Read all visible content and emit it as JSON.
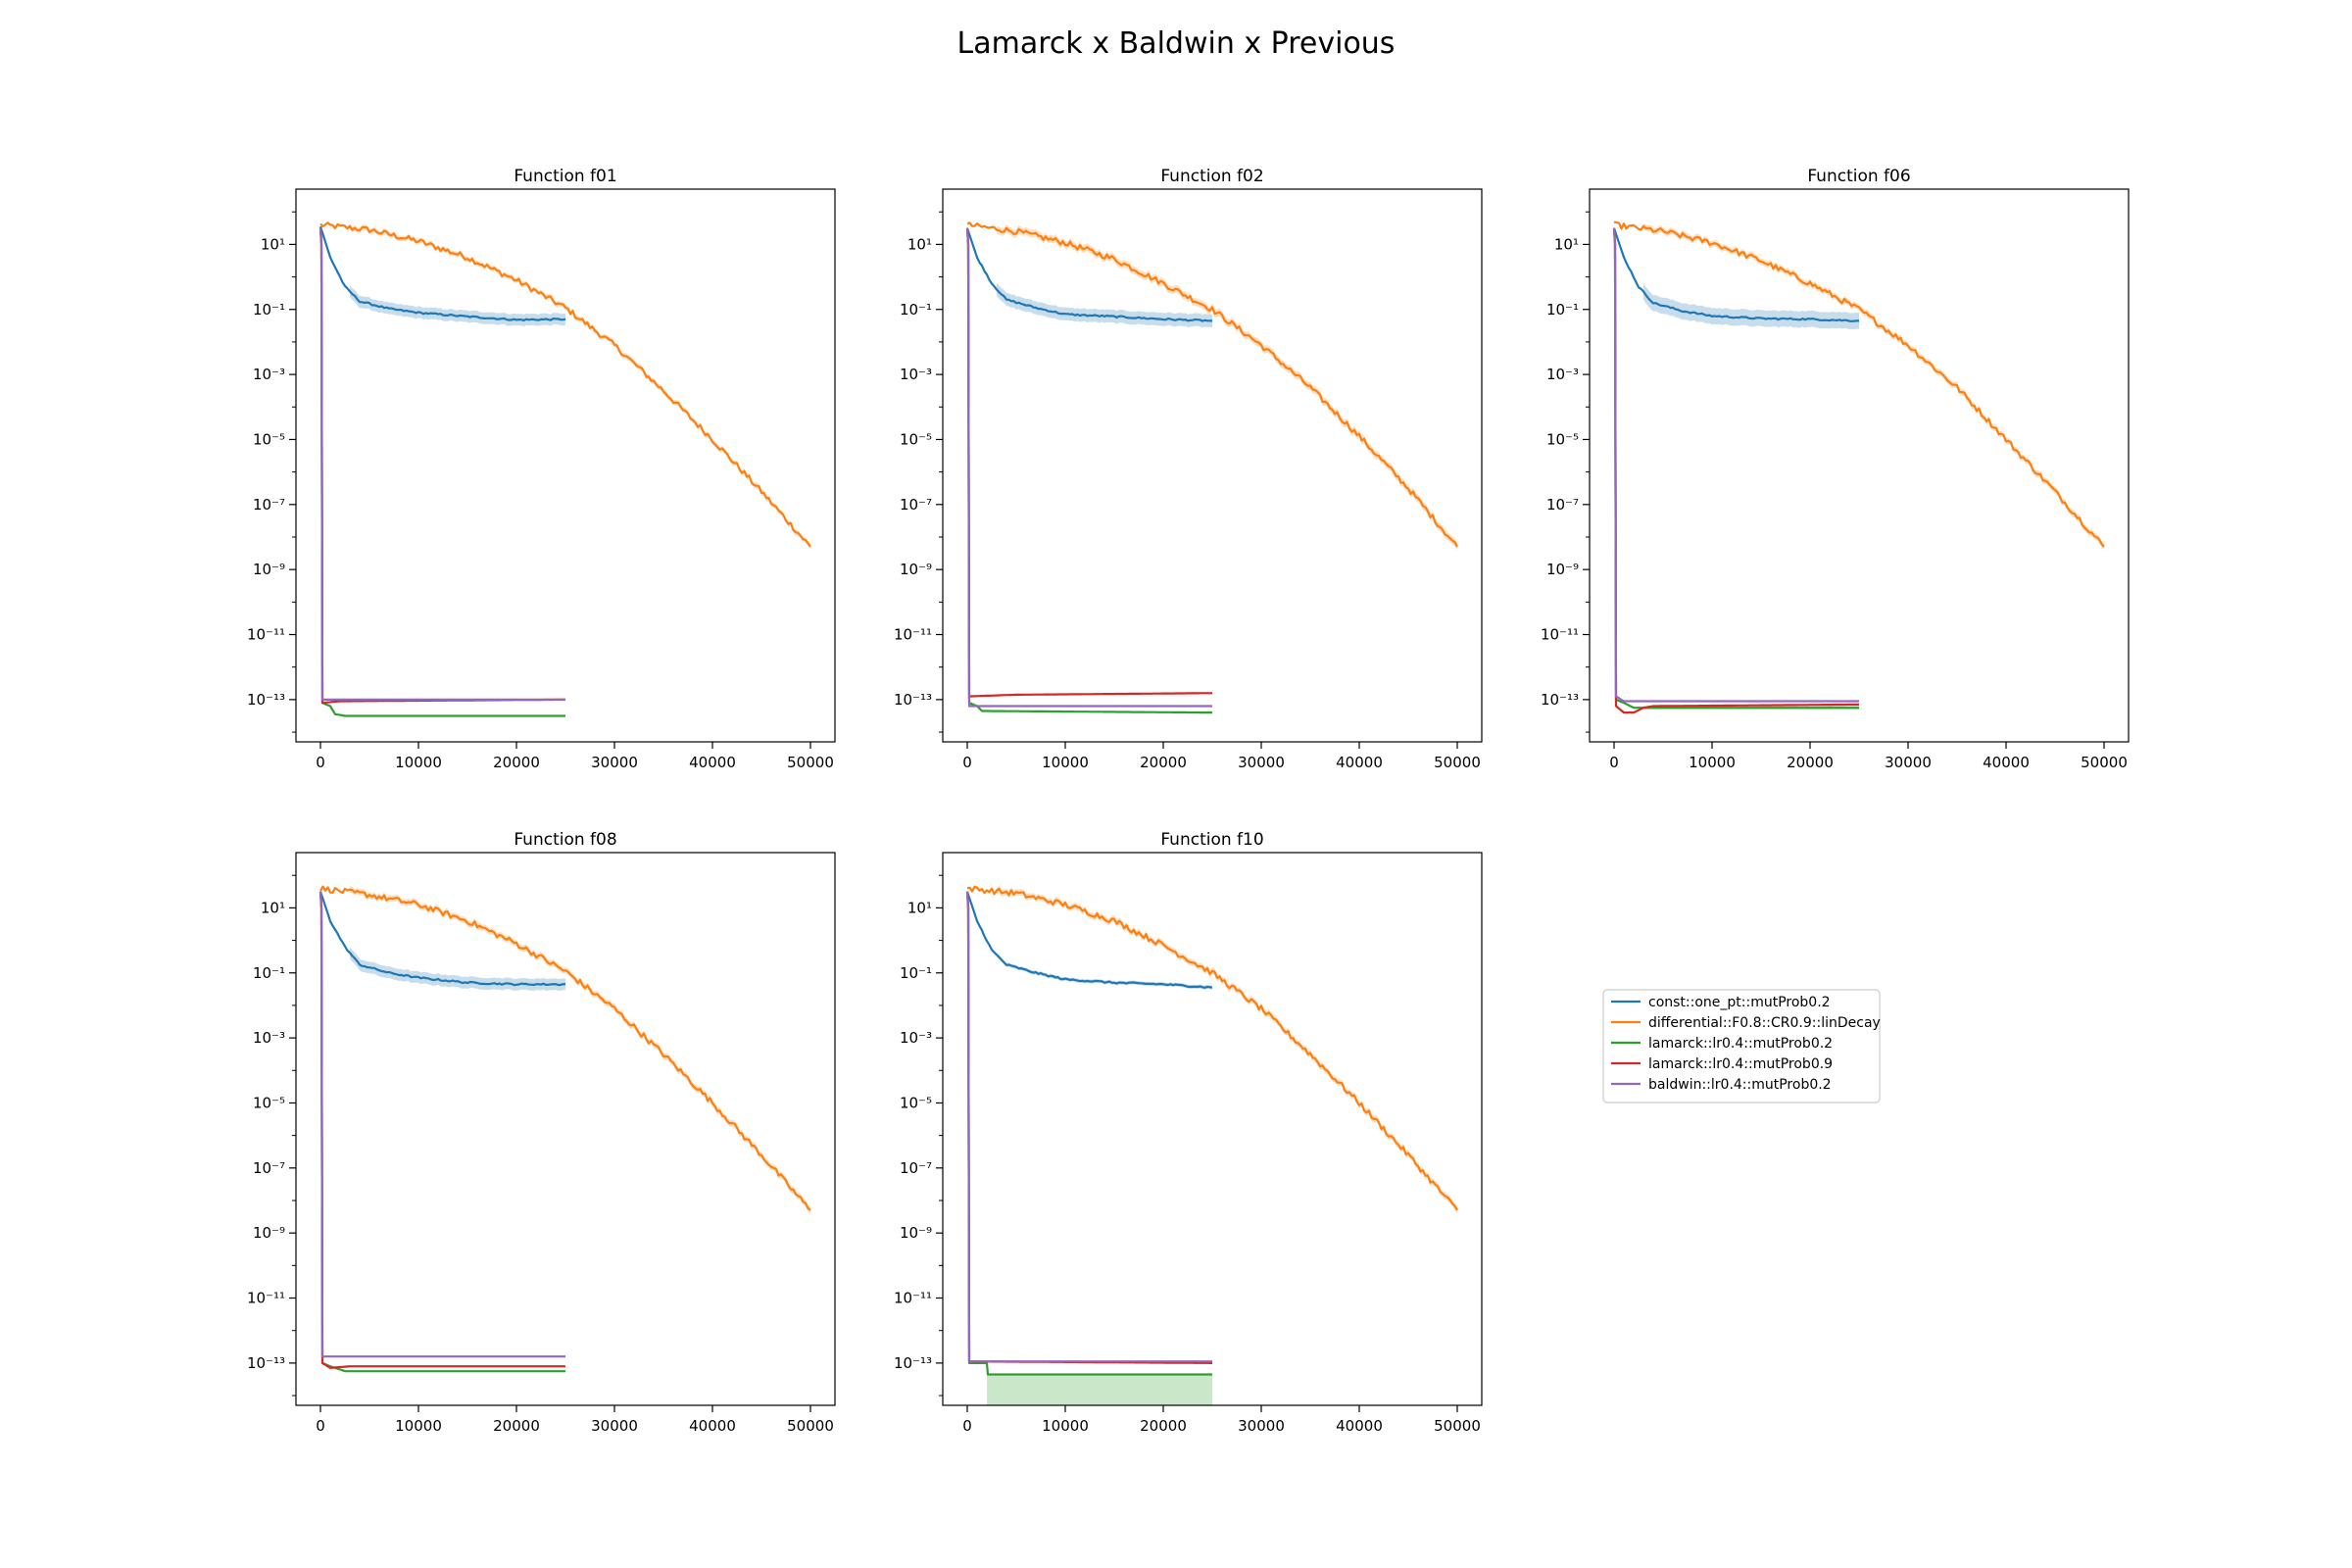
{
  "figure": {
    "title": "Lamarck x Baldwin x Previous"
  },
  "legend": {
    "placement": "right-middle",
    "items": [
      {
        "label": "const::one_pt::mutProb0.2",
        "color": "#1f77b4"
      },
      {
        "label": "differential::F0.8::CR0.9::linDecay",
        "color": "#ff7f0e"
      },
      {
        "label": "lamarck::lr0.4::mutProb0.2",
        "color": "#2ca02c"
      },
      {
        "label": "lamarck::lr0.4::mutProb0.9",
        "color": "#d62728"
      },
      {
        "label": "baldwin::lr0.4::mutProb0.2",
        "color": "#9467bd"
      }
    ]
  },
  "chart_data": [
    {
      "type": "line",
      "title": "Function f01",
      "y_scale": "log",
      "grid": false,
      "xlim": [
        -2500,
        52500
      ],
      "ylim_exp": [
        -14.3,
        2.7
      ],
      "x_ticks": [
        0,
        10000,
        20000,
        30000,
        40000,
        50000
      ],
      "y_tick_exps": [
        1,
        -1,
        -3,
        -5,
        -7,
        -9,
        -11,
        -13
      ],
      "series": [
        {
          "name": "const::one_pt::mutProb0.2",
          "color": "#1f77b4",
          "band": 0.18,
          "points": [
            [
              0,
              1.55
            ],
            [
              1000,
              0.6
            ],
            [
              2500,
              -0.3
            ],
            [
              4000,
              -0.75
            ],
            [
              7000,
              -0.98
            ],
            [
              10000,
              -1.1
            ],
            [
              15000,
              -1.22
            ],
            [
              20000,
              -1.32
            ],
            [
              25000,
              -1.3
            ]
          ]
        },
        {
          "name": "differential::F0.8::CR0.9::linDecay",
          "color": "#ff7f0e",
          "band": 0.08,
          "points": [
            [
              0,
              1.6
            ],
            [
              5000,
              1.45
            ],
            [
              10000,
              1.1
            ],
            [
              15000,
              0.6
            ],
            [
              20000,
              -0.1
            ],
            [
              25000,
              -0.95
            ],
            [
              30000,
              -2.1
            ],
            [
              35000,
              -3.5
            ],
            [
              40000,
              -5.0
            ],
            [
              45000,
              -6.6
            ],
            [
              50000,
              -8.3
            ]
          ]
        },
        {
          "name": "lamarck::lr0.4::mutProb0.2",
          "color": "#2ca02c",
          "band": 0,
          "points": [
            [
              0,
              1.5
            ],
            [
              100,
              1.0
            ],
            [
              200,
              -13.1
            ],
            [
              1000,
              -13.2
            ],
            [
              1500,
              -13.45
            ],
            [
              2500,
              -13.5
            ],
            [
              25000,
              -13.5
            ]
          ]
        },
        {
          "name": "lamarck::lr0.4::mutProb0.9",
          "color": "#d62728",
          "band": 0,
          "points": [
            [
              0,
              1.5
            ],
            [
              100,
              1.0
            ],
            [
              200,
              -13.1
            ],
            [
              2000,
              -13.05
            ],
            [
              25000,
              -13.0
            ]
          ]
        },
        {
          "name": "baldwin::lr0.4::mutProb0.2",
          "color": "#9467bd",
          "band": 0,
          "points": [
            [
              0,
              1.5
            ],
            [
              100,
              1.0
            ],
            [
              200,
              -13.0
            ],
            [
              25000,
              -13.0
            ]
          ]
        }
      ]
    },
    {
      "type": "line",
      "title": "Function f02",
      "y_scale": "log",
      "grid": false,
      "xlim": [
        -2500,
        52500
      ],
      "ylim_exp": [
        -14.3,
        2.7
      ],
      "x_ticks": [
        0,
        10000,
        20000,
        30000,
        40000,
        50000
      ],
      "y_tick_exps": [
        1,
        -1,
        -3,
        -5,
        -7,
        -9,
        -11,
        -13
      ],
      "series": [
        {
          "name": "const::one_pt::mutProb0.2",
          "color": "#1f77b4",
          "band": 0.2,
          "points": [
            [
              0,
              1.5
            ],
            [
              1000,
              0.6
            ],
            [
              2500,
              -0.2
            ],
            [
              4000,
              -0.7
            ],
            [
              7000,
              -0.95
            ],
            [
              10000,
              -1.15
            ],
            [
              15000,
              -1.22
            ],
            [
              20000,
              -1.3
            ],
            [
              25000,
              -1.35
            ]
          ]
        },
        {
          "name": "differential::F0.8::CR0.9::linDecay",
          "color": "#ff7f0e",
          "band": 0.12,
          "points": [
            [
              0,
              1.6
            ],
            [
              5000,
              1.4
            ],
            [
              10000,
              1.05
            ],
            [
              15000,
              0.55
            ],
            [
              20000,
              -0.2
            ],
            [
              25000,
              -1.0
            ],
            [
              30000,
              -2.1
            ],
            [
              35000,
              -3.4
            ],
            [
              40000,
              -4.9
            ],
            [
              45000,
              -6.5
            ],
            [
              50000,
              -8.3
            ]
          ]
        },
        {
          "name": "lamarck::lr0.4::mutProb0.2",
          "color": "#2ca02c",
          "band": 0,
          "points": [
            [
              0,
              1.5
            ],
            [
              100,
              1.0
            ],
            [
              200,
              -13.1
            ],
            [
              1000,
              -13.2
            ],
            [
              1500,
              -13.35
            ],
            [
              25000,
              -13.4
            ]
          ]
        },
        {
          "name": "lamarck::lr0.4::mutProb0.9",
          "color": "#d62728",
          "band": 0,
          "points": [
            [
              0,
              1.5
            ],
            [
              100,
              1.0
            ],
            [
              200,
              -12.9
            ],
            [
              5000,
              -12.85
            ],
            [
              25000,
              -12.8
            ]
          ]
        },
        {
          "name": "baldwin::lr0.4::mutProb0.2",
          "color": "#9467bd",
          "band": 0,
          "points": [
            [
              0,
              1.5
            ],
            [
              100,
              1.0
            ],
            [
              200,
              -13.2
            ],
            [
              25000,
              -13.2
            ]
          ]
        }
      ]
    },
    {
      "type": "line",
      "title": "Function f06",
      "y_scale": "log",
      "grid": false,
      "xlim": [
        -2500,
        52500
      ],
      "ylim_exp": [
        -14.3,
        2.7
      ],
      "x_ticks": [
        0,
        10000,
        20000,
        30000,
        40000,
        50000
      ],
      "y_tick_exps": [
        1,
        -1,
        -3,
        -5,
        -7,
        -9,
        -11,
        -13
      ],
      "series": [
        {
          "name": "const::one_pt::mutProb0.2",
          "color": "#1f77b4",
          "band": 0.25,
          "points": [
            [
              0,
              1.5
            ],
            [
              1000,
              0.6
            ],
            [
              2500,
              -0.3
            ],
            [
              4000,
              -0.8
            ],
            [
              7000,
              -1.05
            ],
            [
              10000,
              -1.2
            ],
            [
              15000,
              -1.28
            ],
            [
              20000,
              -1.3
            ],
            [
              25000,
              -1.35
            ]
          ]
        },
        {
          "name": "differential::F0.8::CR0.9::linDecay",
          "color": "#ff7f0e",
          "band": 0.1,
          "points": [
            [
              0,
              1.6
            ],
            [
              5000,
              1.4
            ],
            [
              10000,
              1.05
            ],
            [
              15000,
              0.5
            ],
            [
              20000,
              -0.2
            ],
            [
              25000,
              -1.0
            ],
            [
              30000,
              -2.1
            ],
            [
              35000,
              -3.4
            ],
            [
              40000,
              -5.0
            ],
            [
              45000,
              -6.6
            ],
            [
              50000,
              -8.3
            ]
          ]
        },
        {
          "name": "lamarck::lr0.4::mutProb0.2",
          "color": "#2ca02c",
          "band": 0.06,
          "points": [
            [
              0,
              1.5
            ],
            [
              100,
              1.0
            ],
            [
              200,
              -13.0
            ],
            [
              1000,
              -13.1
            ],
            [
              2000,
              -13.25
            ],
            [
              25000,
              -13.25
            ]
          ]
        },
        {
          "name": "lamarck::lr0.4::mutProb0.9",
          "color": "#d62728",
          "band": 0,
          "points": [
            [
              0,
              1.5
            ],
            [
              100,
              1.0
            ],
            [
              200,
              -13.2
            ],
            [
              1000,
              -13.4
            ],
            [
              2000,
              -13.4
            ],
            [
              3000,
              -13.25
            ],
            [
              4000,
              -13.2
            ],
            [
              25000,
              -13.15
            ]
          ]
        },
        {
          "name": "baldwin::lr0.4::mutProb0.2",
          "color": "#9467bd",
          "band": 0,
          "points": [
            [
              0,
              1.5
            ],
            [
              100,
              1.0
            ],
            [
              200,
              -12.9
            ],
            [
              1000,
              -13.05
            ],
            [
              25000,
              -13.05
            ]
          ]
        }
      ]
    },
    {
      "type": "line",
      "title": "Function f08",
      "y_scale": "log",
      "grid": false,
      "xlim": [
        -2500,
        52500
      ],
      "ylim_exp": [
        -14.3,
        2.7
      ],
      "x_ticks": [
        0,
        10000,
        20000,
        30000,
        40000,
        50000
      ],
      "y_tick_exps": [
        1,
        -1,
        -3,
        -5,
        -7,
        -9,
        -11,
        -13
      ],
      "series": [
        {
          "name": "const::one_pt::mutProb0.2",
          "color": "#1f77b4",
          "band": 0.18,
          "points": [
            [
              0,
              1.5
            ],
            [
              1000,
              0.6
            ],
            [
              2500,
              -0.2
            ],
            [
              4000,
              -0.75
            ],
            [
              7000,
              -1.0
            ],
            [
              10000,
              -1.15
            ],
            [
              15000,
              -1.3
            ],
            [
              20000,
              -1.35
            ],
            [
              25000,
              -1.35
            ]
          ]
        },
        {
          "name": "differential::F0.8::CR0.9::linDecay",
          "color": "#ff7f0e",
          "band": 0.1,
          "points": [
            [
              0,
              1.6
            ],
            [
              5000,
              1.4
            ],
            [
              10000,
              1.1
            ],
            [
              15000,
              0.6
            ],
            [
              20000,
              -0.1
            ],
            [
              25000,
              -0.95
            ],
            [
              30000,
              -2.1
            ],
            [
              35000,
              -3.5
            ],
            [
              40000,
              -5.0
            ],
            [
              45000,
              -6.6
            ],
            [
              50000,
              -8.3
            ]
          ]
        },
        {
          "name": "lamarck::lr0.4::mutProb0.2",
          "color": "#2ca02c",
          "band": 0,
          "points": [
            [
              0,
              1.5
            ],
            [
              100,
              1.0
            ],
            [
              200,
              -13.0
            ],
            [
              1000,
              -13.1
            ],
            [
              2500,
              -13.25
            ],
            [
              25000,
              -13.25
            ]
          ]
        },
        {
          "name": "lamarck::lr0.4::mutProb0.9",
          "color": "#d62728",
          "band": 0,
          "points": [
            [
              0,
              1.5
            ],
            [
              100,
              1.0
            ],
            [
              200,
              -13.0
            ],
            [
              1000,
              -13.15
            ],
            [
              3000,
              -13.1
            ],
            [
              25000,
              -13.1
            ]
          ]
        },
        {
          "name": "baldwin::lr0.4::mutProb0.2",
          "color": "#9467bd",
          "band": 0,
          "points": [
            [
              0,
              1.5
            ],
            [
              100,
              1.0
            ],
            [
              200,
              -12.8
            ],
            [
              25000,
              -12.8
            ]
          ]
        }
      ]
    },
    {
      "type": "line",
      "title": "Function f10",
      "y_scale": "log",
      "grid": false,
      "xlim": [
        -2500,
        52500
      ],
      "ylim_exp": [
        -14.3,
        2.7
      ],
      "x_ticks": [
        0,
        10000,
        20000,
        30000,
        40000,
        50000
      ],
      "y_tick_exps": [
        1,
        -1,
        -3,
        -5,
        -7,
        -9,
        -11,
        -13
      ],
      "series": [
        {
          "name": "const::one_pt::mutProb0.2",
          "color": "#1f77b4",
          "band": 0.06,
          "points": [
            [
              0,
              1.5
            ],
            [
              1000,
              0.6
            ],
            [
              2500,
              -0.3
            ],
            [
              4000,
              -0.75
            ],
            [
              7000,
              -1.0
            ],
            [
              10000,
              -1.2
            ],
            [
              15000,
              -1.3
            ],
            [
              20000,
              -1.35
            ],
            [
              25000,
              -1.45
            ]
          ]
        },
        {
          "name": "differential::F0.8::CR0.9::linDecay",
          "color": "#ff7f0e",
          "band": 0.1,
          "points": [
            [
              0,
              1.6
            ],
            [
              5000,
              1.45
            ],
            [
              10000,
              1.1
            ],
            [
              15000,
              0.6
            ],
            [
              20000,
              -0.15
            ],
            [
              25000,
              -1.0
            ],
            [
              30000,
              -2.1
            ],
            [
              35000,
              -3.5
            ],
            [
              40000,
              -5.0
            ],
            [
              45000,
              -6.6
            ],
            [
              50000,
              -8.3
            ]
          ]
        },
        {
          "name": "lamarck::lr0.4::mutProb0.2",
          "color": "#2ca02c",
          "band": 0,
          "points": [
            [
              0,
              1.5
            ],
            [
              100,
              1.0
            ],
            [
              200,
              -13.0
            ],
            [
              2000,
              -13.0
            ],
            [
              2100,
              -13.35
            ],
            [
              25000,
              -13.35
            ]
          ]
        },
        {
          "name": "lamarck::lr0.4::mutProb0.9",
          "color": "#d62728",
          "band": 0,
          "points": [
            [
              0,
              1.5
            ],
            [
              100,
              1.0
            ],
            [
              200,
              -12.95
            ],
            [
              25000,
              -13.0
            ]
          ]
        },
        {
          "name": "baldwin::lr0.4::mutProb0.2",
          "color": "#9467bd",
          "band": 0,
          "points": [
            [
              0,
              1.5
            ],
            [
              100,
              1.0
            ],
            [
              200,
              -12.95
            ],
            [
              25000,
              -12.95
            ]
          ]
        }
      ],
      "shaded_region": {
        "series": "lamarck::lr0.4::mutProb0.2",
        "x": [
          2000,
          25000
        ],
        "y_exp": [
          -13.35,
          -14.3
        ]
      }
    }
  ]
}
